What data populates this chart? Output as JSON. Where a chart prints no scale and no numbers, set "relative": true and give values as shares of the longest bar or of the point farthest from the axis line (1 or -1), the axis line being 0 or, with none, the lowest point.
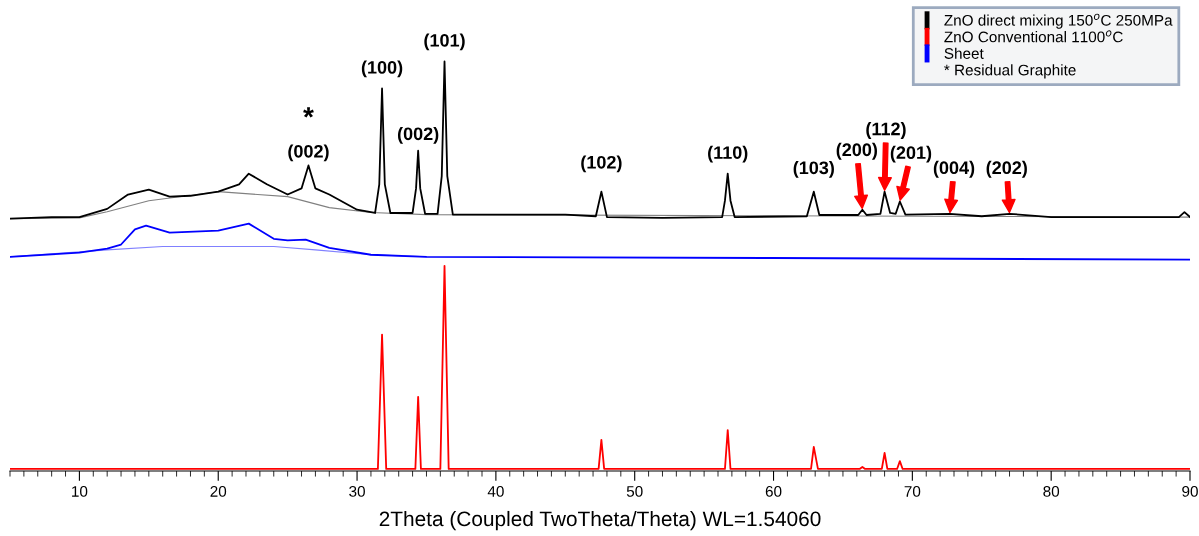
{
  "chart_data": {
    "type": "line",
    "relative": true,
    "xlabel": "2Theta (Coupled TwoTheta/Theta) WL=1.54060",
    "xlim": [
      5,
      90
    ],
    "xticks": [
      10,
      20,
      30,
      40,
      50,
      60,
      70,
      80,
      90
    ],
    "grid": false,
    "legend": "top right",
    "marker": "none",
    "line_style": "solid",
    "series": [
      {
        "name": "ZnO direct mixing 150$^{o}$C 250MPa",
        "color": "#000000",
        "x": [
          5,
          8,
          10,
          12,
          13.5,
          15,
          16.5,
          18,
          20,
          21.5,
          22.2,
          23.5,
          25,
          26,
          26.5,
          27,
          28,
          30,
          31.3,
          31.6,
          31.8,
          32.0,
          32.4,
          34.0,
          34.25,
          34.4,
          34.55,
          34.9,
          35.8,
          36.1,
          36.3,
          36.5,
          36.9,
          40,
          45,
          47.2,
          47.6,
          48.0,
          52,
          56.3,
          56.5,
          56.7,
          56.9,
          57.2,
          62.4,
          62.9,
          63.3,
          66.1,
          66.4,
          66.7,
          67.7,
          68.0,
          68.4,
          68.8,
          69.1,
          69.5,
          72.7,
          75,
          77.0,
          80,
          89.2,
          89.6,
          90
        ],
        "values": [
          0.616,
          0.62,
          0.62,
          0.64,
          0.675,
          0.687,
          0.67,
          0.672,
          0.682,
          0.7,
          0.726,
          0.7,
          0.675,
          0.69,
          0.746,
          0.69,
          0.675,
          0.638,
          0.63,
          0.7,
          0.934,
          0.7,
          0.63,
          0.63,
          0.69,
          0.782,
          0.69,
          0.628,
          0.628,
          0.72,
          1.0,
          0.72,
          0.626,
          0.626,
          0.626,
          0.622,
          0.682,
          0.62,
          0.618,
          0.62,
          0.66,
          0.726,
          0.66,
          0.62,
          0.622,
          0.682,
          0.625,
          0.625,
          0.638,
          0.625,
          0.628,
          0.682,
          0.63,
          0.628,
          0.658,
          0.626,
          0.628,
          0.622,
          0.628,
          0.62,
          0.62,
          0.632,
          0.62
        ]
      },
      {
        "name": "ZnO Conventional 1100$^{o}$C",
        "color": "#ff0000",
        "x": [
          5,
          31.5,
          31.8,
          32.1,
          34.2,
          34.4,
          34.6,
          36.0,
          36.3,
          36.6,
          47.4,
          47.6,
          47.8,
          56.5,
          56.7,
          56.9,
          62.7,
          62.9,
          63.2,
          66.2,
          66.4,
          66.6,
          67.8,
          68.0,
          68.2,
          68.9,
          69.1,
          69.3,
          77,
          90
        ],
        "values": [
          0.005,
          0.005,
          0.333,
          0.005,
          0.005,
          0.181,
          0.005,
          0.005,
          0.501,
          0.005,
          0.005,
          0.076,
          0.005,
          0.005,
          0.1,
          0.005,
          0.005,
          0.059,
          0.005,
          0.005,
          0.01,
          0.005,
          0.005,
          0.044,
          0.005,
          0.005,
          0.024,
          0.005,
          0.005,
          0.005
        ]
      },
      {
        "name": "Sheet",
        "color": "#0000ff",
        "x": [
          5,
          10,
          12,
          13,
          14,
          14.8,
          16.5,
          20,
          22.2,
          24,
          25,
          26.3,
          28,
          31,
          35,
          60,
          90
        ],
        "values": [
          0.523,
          0.533,
          0.543,
          0.553,
          0.59,
          0.599,
          0.582,
          0.587,
          0.604,
          0.567,
          0.563,
          0.565,
          0.545,
          0.528,
          0.523,
          0.52,
          0.516
        ]
      },
      {
        "color": "#808080",
        "x": [
          5,
          10,
          12,
          15,
          20,
          25,
          28,
          31,
          35,
          90
        ],
        "values": [
          0.616,
          0.618,
          0.633,
          0.66,
          0.682,
          0.67,
          0.643,
          0.631,
          0.626,
          0.62
        ]
      },
      {
        "color": "#8080ff",
        "x": [
          5,
          12,
          16,
          20,
          24,
          27,
          31,
          35
        ],
        "values": [
          0.523,
          0.54,
          0.548,
          0.548,
          0.548,
          0.54,
          0.528,
          0.523
        ]
      }
    ],
    "annotations": [
      {
        "text": "(101)",
        "x": 36.3,
        "y": 1.0
      },
      {
        "text": "(100)",
        "x": 31.8,
        "y": 0.934
      },
      {
        "text": "(002)",
        "x": 34.4,
        "y": 0.782
      },
      {
        "text": "*",
        "x": 26.5,
        "y": 0.746
      },
      {
        "text": "(002)",
        "x": 26.5,
        "y": 0.746
      },
      {
        "text": "(102)",
        "x": 47.6,
        "y": 0.682
      },
      {
        "text": "(110)",
        "x": 56.7,
        "y": 0.726
      },
      {
        "text": "(103)",
        "x": 62.9,
        "y": 0.682
      },
      {
        "text": "(200)",
        "x": 66.4,
        "y": 0.638
      },
      {
        "text": "(112)",
        "x": 68.0,
        "y": 0.682
      },
      {
        "text": "(201)",
        "x": 69.1,
        "y": 0.658
      },
      {
        "text": "(004)",
        "x": 72.7,
        "y": 0.628
      },
      {
        "text": "(202)",
        "x": 77.0,
        "y": 0.628
      },
      "* Residual Graphite"
    ]
  }
}
